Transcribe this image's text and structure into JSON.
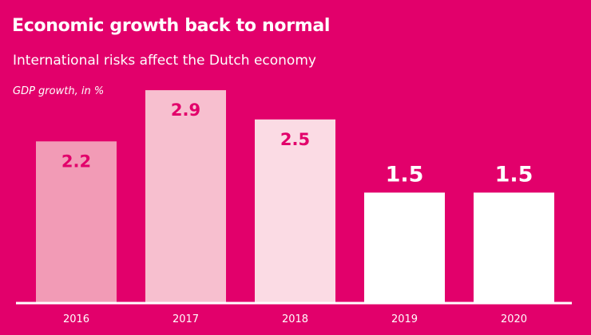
{
  "chart_data": {
    "type": "bar",
    "title": "Economic growth back to normal",
    "subtitle": "International risks affect the Dutch economy",
    "xlabel": "",
    "ylabel": "GDP growth, in %",
    "categories": [
      "2016",
      "2017",
      "2018",
      "2019",
      "2020"
    ],
    "values": [
      2.2,
      2.9,
      2.5,
      1.5,
      1.5
    ],
    "value_labels": [
      "2.2",
      "2.9",
      "2.5",
      "1.5",
      "1.5"
    ],
    "ylim": [
      0,
      3.0
    ],
    "grid": false,
    "legend": "none",
    "bar_colors": [
      "#f29bb6",
      "#f7bfcf",
      "#fbdbe4",
      "#ffffff",
      "#ffffff"
    ],
    "label_colors": [
      "#e2006b",
      "#e2006b",
      "#e2006b",
      "#ffffff",
      "#ffffff"
    ],
    "label_positions": [
      "inside",
      "inside",
      "inside",
      "above",
      "above"
    ]
  },
  "colors": {
    "background": "#e2006b",
    "text": "#ffffff",
    "axis": "#ffffff"
  }
}
